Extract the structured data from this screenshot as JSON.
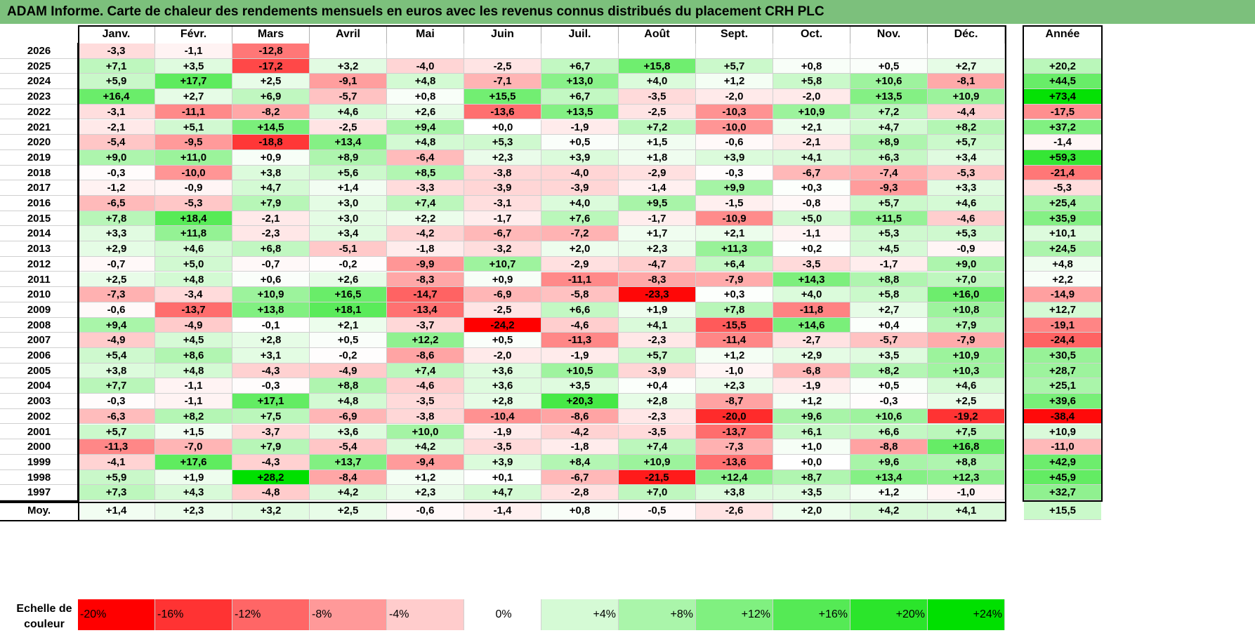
{
  "title": "ADAM Informe. Carte de chaleur des rendements mensuels en euros avec les revenus connus distribués du placement CRH PLC",
  "chart_data": {
    "type": "heatmap",
    "title": "ADAM Informe. Carte de chaleur des rendements mensuels en euros avec les revenus connus distribués du placement CRH PLC",
    "months": [
      "Janv.",
      "Févr.",
      "Mars",
      "Avril",
      "Mai",
      "Juin",
      "Juil.",
      "Août",
      "Sept.",
      "Oct.",
      "Nov.",
      "Déc."
    ],
    "year_header": "Année",
    "rows": [
      {
        "year": "2026",
        "values": [
          "-3,3",
          "-1,1",
          "-12,8",
          "",
          "",
          "",
          "",
          "",
          "",
          "",
          "",
          ""
        ],
        "annual": ""
      },
      {
        "year": "2025",
        "values": [
          "+7,1",
          "+3,5",
          "-17,2",
          "+3,2",
          "-4,0",
          "-2,5",
          "+6,7",
          "+15,8",
          "+5,7",
          "+0,8",
          "+0,5",
          "+2,7"
        ],
        "annual": "+20,2"
      },
      {
        "year": "2024",
        "values": [
          "+5,9",
          "+17,7",
          "+2,5",
          "-9,1",
          "+4,8",
          "-7,1",
          "+13,0",
          "+4,0",
          "+1,2",
          "+5,8",
          "+10,6",
          "-8,1"
        ],
        "annual": "+44,5"
      },
      {
        "year": "2023",
        "values": [
          "+16,4",
          "+2,7",
          "+6,9",
          "-5,7",
          "+0,8",
          "+15,5",
          "+6,7",
          "-3,5",
          "-2,0",
          "-2,0",
          "+13,5",
          "+10,9"
        ],
        "annual": "+73,4"
      },
      {
        "year": "2022",
        "values": [
          "-3,1",
          "-11,1",
          "-8,2",
          "+4,6",
          "+2,6",
          "-13,6",
          "+13,5",
          "-2,5",
          "-10,3",
          "+10,9",
          "+7,2",
          "-4,4"
        ],
        "annual": "-17,5"
      },
      {
        "year": "2021",
        "values": [
          "-2,1",
          "+5,1",
          "+14,5",
          "-2,5",
          "+9,4",
          "+0,0",
          "-1,9",
          "+7,2",
          "-10,0",
          "+2,1",
          "+4,7",
          "+8,2"
        ],
        "annual": "+37,2"
      },
      {
        "year": "2020",
        "values": [
          "-5,4",
          "-9,5",
          "-18,8",
          "+13,4",
          "+4,8",
          "+5,3",
          "+0,5",
          "+1,5",
          "-0,6",
          "-2,1",
          "+8,9",
          "+5,7"
        ],
        "annual": "-1,4"
      },
      {
        "year": "2019",
        "values": [
          "+9,0",
          "+11,0",
          "+0,9",
          "+8,9",
          "-6,4",
          "+2,3",
          "+3,9",
          "+1,8",
          "+3,9",
          "+4,1",
          "+6,3",
          "+3,4"
        ],
        "annual": "+59,3"
      },
      {
        "year": "2018",
        "values": [
          "-0,3",
          "-10,0",
          "+3,8",
          "+5,6",
          "+8,5",
          "-3,8",
          "-4,0",
          "-2,9",
          "-0,3",
          "-6,7",
          "-7,4",
          "-5,3"
        ],
        "annual": "-21,4"
      },
      {
        "year": "2017",
        "values": [
          "-1,2",
          "-0,9",
          "+4,7",
          "+1,4",
          "-3,3",
          "-3,9",
          "-3,9",
          "-1,4",
          "+9,9",
          "+0,3",
          "-9,3",
          "+3,3"
        ],
        "annual": "-5,3"
      },
      {
        "year": "2016",
        "values": [
          "-6,5",
          "-5,3",
          "+7,9",
          "+3,0",
          "+7,4",
          "-3,1",
          "+4,0",
          "+9,5",
          "-1,5",
          "-0,8",
          "+5,7",
          "+4,6"
        ],
        "annual": "+25,4"
      },
      {
        "year": "2015",
        "values": [
          "+7,8",
          "+18,4",
          "-2,1",
          "+3,0",
          "+2,2",
          "-1,7",
          "+7,6",
          "-1,7",
          "-10,9",
          "+5,0",
          "+11,5",
          "-4,6"
        ],
        "annual": "+35,9"
      },
      {
        "year": "2014",
        "values": [
          "+3,3",
          "+11,8",
          "-2,3",
          "+3,4",
          "-4,2",
          "-6,7",
          "-7,2",
          "+1,7",
          "+2,1",
          "-1,1",
          "+5,3",
          "+5,3"
        ],
        "annual": "+10,1"
      },
      {
        "year": "2013",
        "values": [
          "+2,9",
          "+4,6",
          "+6,8",
          "-5,1",
          "-1,8",
          "-3,2",
          "+2,0",
          "+2,3",
          "+11,3",
          "+0,2",
          "+4,5",
          "-0,9"
        ],
        "annual": "+24,5"
      },
      {
        "year": "2012",
        "values": [
          "-0,7",
          "+5,0",
          "-0,7",
          "-0,2",
          "-9,9",
          "+10,7",
          "-2,9",
          "-4,7",
          "+6,4",
          "-3,5",
          "-1,7",
          "+9,0"
        ],
        "annual": "+4,8"
      },
      {
        "year": "2011",
        "values": [
          "+2,5",
          "+4,8",
          "+0,6",
          "+2,6",
          "-8,3",
          "+0,9",
          "-11,1",
          "-8,3",
          "-7,9",
          "+14,3",
          "+8,8",
          "+7,0"
        ],
        "annual": "+2,2"
      },
      {
        "year": "2010",
        "values": [
          "-7,3",
          "-3,4",
          "+10,9",
          "+16,5",
          "-14,7",
          "-6,9",
          "-5,8",
          "-23,3",
          "+0,3",
          "+4,0",
          "+5,8",
          "+16,0"
        ],
        "annual": "-14,9"
      },
      {
        "year": "2009",
        "values": [
          "-0,6",
          "-13,7",
          "+13,8",
          "+18,1",
          "-13,4",
          "-2,5",
          "+6,6",
          "+1,9",
          "+7,8",
          "-11,8",
          "+2,7",
          "+10,8"
        ],
        "annual": "+12,7"
      },
      {
        "year": "2008",
        "values": [
          "+9,4",
          "-4,9",
          "-0,1",
          "+2,1",
          "-3,7",
          "-24,2",
          "-4,6",
          "+4,1",
          "-15,5",
          "+14,6",
          "+0,4",
          "+7,9"
        ],
        "annual": "-19,1"
      },
      {
        "year": "2007",
        "values": [
          "-4,9",
          "+4,5",
          "+2,8",
          "+0,5",
          "+12,2",
          "+0,5",
          "-11,3",
          "-2,3",
          "-11,4",
          "-2,7",
          "-5,7",
          "-7,9"
        ],
        "annual": "-24,4"
      },
      {
        "year": "2006",
        "values": [
          "+5,4",
          "+8,6",
          "+3,1",
          "-0,2",
          "-8,6",
          "-2,0",
          "-1,9",
          "+5,7",
          "+1,2",
          "+2,9",
          "+3,5",
          "+10,9"
        ],
        "annual": "+30,5"
      },
      {
        "year": "2005",
        "values": [
          "+3,8",
          "+4,8",
          "-4,3",
          "-4,9",
          "+7,4",
          "+3,6",
          "+10,5",
          "-3,9",
          "-1,0",
          "-6,8",
          "+8,2",
          "+10,3"
        ],
        "annual": "+28,7"
      },
      {
        "year": "2004",
        "values": [
          "+7,7",
          "-1,1",
          "-0,3",
          "+8,8",
          "-4,6",
          "+3,6",
          "+3,5",
          "+0,4",
          "+2,3",
          "-1,9",
          "+0,5",
          "+4,6"
        ],
        "annual": "+25,1"
      },
      {
        "year": "2003",
        "values": [
          "-0,3",
          "-1,1",
          "+17,1",
          "+4,8",
          "-3,5",
          "+2,8",
          "+20,3",
          "+2,8",
          "-8,7",
          "+1,2",
          "-0,3",
          "+2,5"
        ],
        "annual": "+39,6"
      },
      {
        "year": "2002",
        "values": [
          "-6,3",
          "+8,2",
          "+7,5",
          "-6,9",
          "-3,8",
          "-10,4",
          "-8,6",
          "-2,3",
          "-20,0",
          "+9,6",
          "+10,6",
          "-19,2"
        ],
        "annual": "-38,4"
      },
      {
        "year": "2001",
        "values": [
          "+5,7",
          "+1,5",
          "-3,7",
          "+3,6",
          "+10,0",
          "-1,9",
          "-4,2",
          "-3,5",
          "-13,7",
          "+6,1",
          "+6,6",
          "+7,5"
        ],
        "annual": "+10,9"
      },
      {
        "year": "2000",
        "values": [
          "-11,3",
          "-7,0",
          "+7,9",
          "-5,4",
          "+4,2",
          "-3,5",
          "-1,8",
          "+7,4",
          "-7,3",
          "+1,0",
          "-8,8",
          "+16,8"
        ],
        "annual": "-11,0"
      },
      {
        "year": "1999",
        "values": [
          "-4,1",
          "+17,6",
          "-4,3",
          "+13,7",
          "-9,4",
          "+3,9",
          "+8,4",
          "+10,9",
          "-13,6",
          "+0,0",
          "+9,6",
          "+8,8"
        ],
        "annual": "+42,9"
      },
      {
        "year": "1998",
        "values": [
          "+5,9",
          "+1,9",
          "+28,2",
          "-8,4",
          "+1,2",
          "+0,1",
          "-6,7",
          "-21,5",
          "+12,4",
          "+8,7",
          "+13,4",
          "+12,3"
        ],
        "annual": "+45,9"
      },
      {
        "year": "1997",
        "values": [
          "+7,3",
          "+4,3",
          "-4,8",
          "+4,2",
          "+2,3",
          "+4,7",
          "-2,8",
          "+7,0",
          "+3,8",
          "+3,5",
          "+1,2",
          "-1,0"
        ],
        "annual": "+32,7"
      }
    ],
    "average": {
      "label": "Moy.",
      "values": [
        "+1,4",
        "+2,3",
        "+3,2",
        "+2,5",
        "-0,6",
        "-1,4",
        "+0,8",
        "-0,5",
        "-2,6",
        "+2,0",
        "+4,2",
        "+4,1"
      ],
      "annual": "+15,5"
    },
    "scale": {
      "label_line1": "Echelle de",
      "label_line2": "couleur",
      "steps": [
        "-20%",
        "-16%",
        "-12%",
        "-8%",
        "-4%",
        "0%",
        "+4%",
        "+8%",
        "+12%",
        "+16%",
        "+20%",
        "+24%"
      ],
      "step_values": [
        -20,
        -16,
        -12,
        -8,
        -4,
        0,
        4,
        8,
        12,
        16,
        20,
        24
      ]
    },
    "colors": {
      "negative_max": "#ff0000",
      "neutral": "#ffffff",
      "positive_max": "#00e000",
      "title_background": "#7cc07c"
    },
    "color_scale_monthly": [
      -24,
      28
    ],
    "color_scale_annual": [
      -40,
      75
    ]
  }
}
